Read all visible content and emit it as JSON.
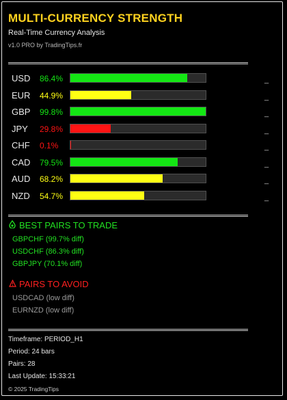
{
  "header": {
    "title": "MULTI-CURRENCY STRENGTH",
    "subtitle": "Real-Time Currency Analysis",
    "version": "v1.0 PRO by TradingTips.fr"
  },
  "currencies": [
    {
      "code": "USD",
      "pct_label": "86.4%",
      "strength": 86.4,
      "color": "#14e614"
    },
    {
      "code": "EUR",
      "pct_label": "44.9%",
      "strength": 44.9,
      "color": "#ffff14"
    },
    {
      "code": "GBP",
      "pct_label": "99.8%",
      "strength": 99.8,
      "color": "#14e614"
    },
    {
      "code": "JPY",
      "pct_label": "29.8%",
      "strength": 29.8,
      "color": "#ff1414"
    },
    {
      "code": "CHF",
      "pct_label": "0.1%",
      "strength": 0.1,
      "color": "#ff1414"
    },
    {
      "code": "CAD",
      "pct_label": "79.5%",
      "strength": 79.5,
      "color": "#14e614"
    },
    {
      "code": "AUD",
      "pct_label": "68.2%",
      "strength": 68.2,
      "color": "#ffff14"
    },
    {
      "code": "NZD",
      "pct_label": "54.7%",
      "strength": 54.7,
      "color": "#ffff14"
    }
  ],
  "row_marker": "_",
  "best_pairs": {
    "heading": "BEST PAIRS TO TRADE",
    "icon": "drop-icon",
    "color": "#22e022",
    "items": [
      "GBPCHF (99.7% diff)",
      "USDCHF (86.3% diff)",
      "GBPJPY (70.1% diff)"
    ]
  },
  "avoid_pairs": {
    "heading": "PAIRS TO AVOID",
    "icon": "warning-icon",
    "color": "#ff2020",
    "items": [
      "USDCAD (low diff)",
      "EURNZD (low diff)"
    ]
  },
  "footer": {
    "timeframe": "Timeframe: PERIOD_H1",
    "period": "Period: 24 bars",
    "pairs": "Pairs: 28",
    "last_update": "Last Update: 15:33:21",
    "copyright": "© 2025 TradingTips"
  }
}
